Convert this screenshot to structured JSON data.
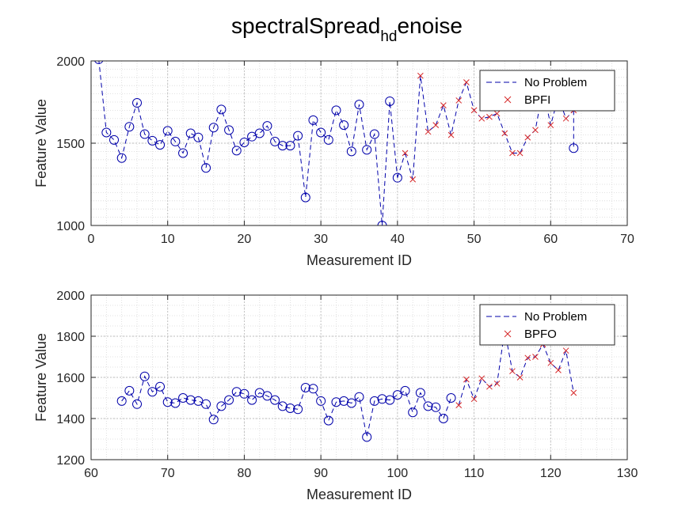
{
  "figure": {
    "title_main": "spectralSpread",
    "title_sub": "hd",
    "title_tail": "enoise"
  },
  "chart_data": [
    {
      "type": "line",
      "xlabel": "Measurement ID",
      "ylabel": "Feature Value",
      "xlim": [
        0,
        70
      ],
      "ylim": [
        1000,
        2000
      ],
      "xticks": [
        0,
        10,
        20,
        30,
        40,
        50,
        60,
        70
      ],
      "yticks": [
        1000,
        1500,
        2000
      ],
      "grid": true,
      "minor_grid": true,
      "legend_position": "top-right",
      "series": [
        {
          "name": "No Problem",
          "color": "#0000aa",
          "line_style": "dashed",
          "marker": "circle",
          "x": [
            1,
            2,
            3,
            4,
            5,
            6,
            7,
            8,
            9,
            10,
            11,
            12,
            13,
            14,
            15,
            16,
            17,
            18,
            19,
            20,
            21,
            22,
            23,
            24,
            25,
            26,
            27,
            28,
            29,
            30,
            31,
            32,
            33,
            34,
            35,
            36,
            37,
            38,
            39,
            40
          ],
          "values": [
            2010,
            1565,
            1520,
            1410,
            1600,
            1745,
            1555,
            1515,
            1490,
            1575,
            1510,
            1440,
            1560,
            1535,
            1350,
            1595,
            1705,
            1580,
            1455,
            1505,
            1540,
            1560,
            1605,
            1510,
            1485,
            1485,
            1545,
            1170,
            1640,
            1565,
            1520,
            1700,
            1610,
            1450,
            1735,
            1460,
            1555,
            1000,
            1755,
            1290
          ]
        },
        {
          "name": "BPFI",
          "color": "#d62728",
          "line_style": "dashed",
          "marker": "x",
          "x": [
            41,
            42,
            43,
            44,
            45,
            46,
            47,
            48,
            49,
            50,
            51,
            52,
            53,
            54,
            55,
            56,
            57,
            58,
            59,
            60,
            61,
            62,
            63
          ],
          "values": [
            1440,
            1280,
            1910,
            1570,
            1610,
            1730,
            1550,
            1760,
            1870,
            1700,
            1650,
            1660,
            1680,
            1560,
            1440,
            1440,
            1535,
            1580,
            1830,
            1610,
            1780,
            1650,
            1700
          ]
        }
      ],
      "dashed_connector": [
        {
          "x": 40,
          "y": 1290
        },
        {
          "x": 41,
          "y": 1440
        }
      ],
      "tail_point": {
        "x": 63,
        "y": 1470
      }
    },
    {
      "type": "line",
      "xlabel": "Measurement ID",
      "ylabel": "Feature Value",
      "xlim": [
        60,
        130
      ],
      "ylim": [
        1200,
        2000
      ],
      "xticks": [
        60,
        70,
        80,
        90,
        100,
        110,
        120,
        130
      ],
      "yticks": [
        1200,
        1400,
        1600,
        1800,
        2000
      ],
      "grid": true,
      "minor_grid": true,
      "legend_position": "top-right",
      "series": [
        {
          "name": "No Problem",
          "color": "#0000aa",
          "line_style": "dashed",
          "marker": "circle",
          "x": [
            64,
            65,
            66,
            67,
            68,
            69,
            70,
            71,
            72,
            73,
            74,
            75,
            76,
            77,
            78,
            79,
            80,
            81,
            82,
            83,
            84,
            85,
            86,
            87,
            88,
            89,
            90,
            91,
            92,
            93,
            94,
            95,
            96,
            97,
            98,
            99,
            100,
            101,
            102,
            103,
            104,
            105,
            106,
            107
          ],
          "values": [
            1485,
            1535,
            1470,
            1605,
            1530,
            1555,
            1480,
            1475,
            1500,
            1490,
            1485,
            1470,
            1395,
            1460,
            1490,
            1530,
            1520,
            1490,
            1525,
            1510,
            1490,
            1460,
            1450,
            1445,
            1550,
            1545,
            1485,
            1390,
            1480,
            1485,
            1475,
            1505,
            1310,
            1485,
            1495,
            1490,
            1515,
            1535,
            1430,
            1525,
            1460,
            1455,
            1400,
            1500
          ]
        },
        {
          "name": "BPFO",
          "color": "#d62728",
          "line_style": "dashed",
          "marker": "x",
          "x": [
            108,
            109,
            110,
            111,
            112,
            113,
            114,
            115,
            116,
            117,
            118,
            119,
            120,
            121,
            122,
            123
          ],
          "values": [
            1465,
            1590,
            1495,
            1595,
            1555,
            1570,
            1830,
            1630,
            1600,
            1695,
            1700,
            1760,
            1670,
            1635,
            1730,
            1525
          ]
        }
      ]
    }
  ]
}
